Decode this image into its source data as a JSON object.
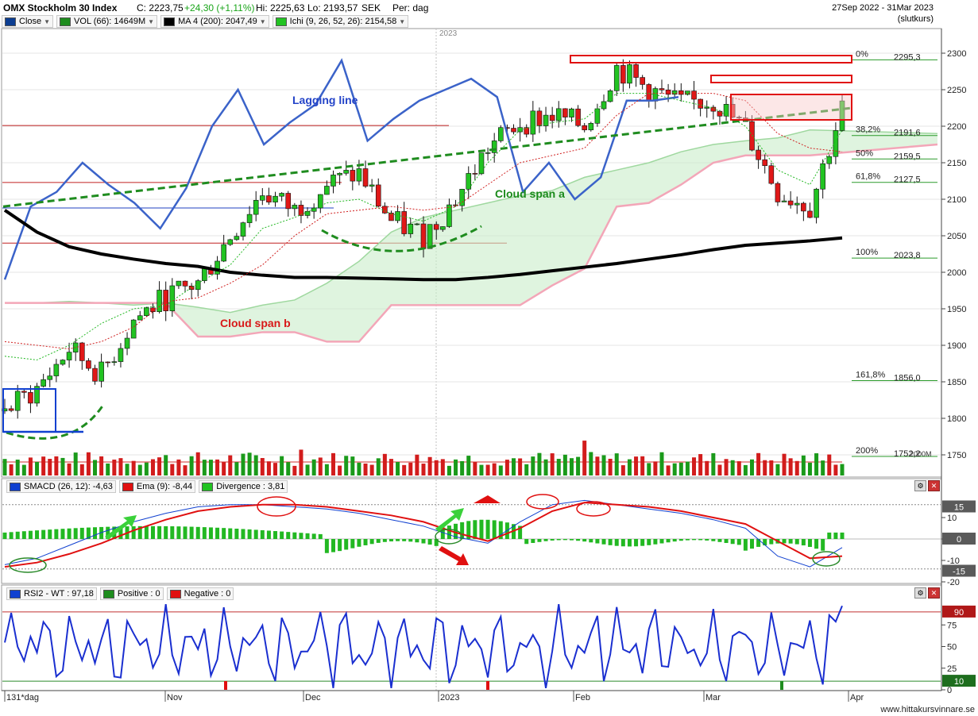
{
  "header": {
    "title": "OMX Stockholm 30 Index",
    "close_label": "C: 2223,75",
    "change_label": "+24,30 (+1,11%)",
    "high_label": "Hi: 2225,63",
    "low_label": "Lo: 2193,57",
    "currency": "SEK",
    "period": "Per: dag",
    "date_range": "27Sep 2022 - 31Mar 2023",
    "price_mode": "(slutkurs)"
  },
  "legend": [
    {
      "label": "Close",
      "color": "#0b3d91"
    },
    {
      "label": "VOL (66): 14649M",
      "color": "#1e8c1e"
    },
    {
      "label": "MA 4 (200): 2047,49",
      "color": "#000000"
    },
    {
      "label": "Ichi (9, 26, 52, 26): 2154,58",
      "color": "#22c322"
    }
  ],
  "annotations": {
    "lagging_line": "Lagging line",
    "cloud_span_a": "Cloud span a",
    "cloud_span_b": "Cloud span b",
    "year_marker": "2023"
  },
  "fib_levels": [
    {
      "pct": "0%",
      "value": 2295.3,
      "value_label": "2295,3"
    },
    {
      "pct": "38,2%",
      "value": 2191.6,
      "value_label": "2191,6"
    },
    {
      "pct": "50%",
      "value": 2159.5,
      "value_label": "2159,5"
    },
    {
      "pct": "61,8%",
      "value": 2127.5,
      "value_label": "2127,5"
    },
    {
      "pct": "100%",
      "value": 2023.8,
      "value_label": "2023,8"
    },
    {
      "pct": "161,8%",
      "value": 1856.0,
      "value_label": "1856,0"
    },
    {
      "pct": "200%",
      "value": 1752.2,
      "value_label": "1752,2"
    }
  ],
  "volume_axis_label": "2000M",
  "price_axis": {
    "ticks": [
      "2300",
      "2250",
      "2200",
      "2150",
      "2100",
      "2050",
      "2000",
      "1950",
      "1900",
      "1850",
      "1800",
      "1750"
    ]
  },
  "macd": {
    "legend": [
      {
        "label": "SMACD (26, 12): -4,63",
        "color": "#1040d0"
      },
      {
        "label": "Ema (9): -8,44",
        "color": "#e01010"
      },
      {
        "label": "Divergence : 3,81",
        "color": "#22c322"
      }
    ],
    "ticks": [
      "10",
      "0",
      "-10",
      "-20"
    ],
    "badges": [
      "15",
      "0",
      "-15"
    ]
  },
  "rsi": {
    "legend": [
      {
        "label": "RSI2 - WT : 97,18",
        "color": "#1040d0"
      },
      {
        "label": "Positive : 0",
        "color": "#1e8c1e"
      },
      {
        "label": "Negative : 0",
        "color": "#e01010"
      }
    ],
    "ticks": [
      "75",
      "50",
      "25",
      "0"
    ],
    "badges": [
      "90",
      "10"
    ]
  },
  "x_axis": {
    "labels": [
      "131*dag",
      "Nov",
      "Dec",
      "2023",
      "Feb",
      "Mar",
      "Apr"
    ]
  },
  "footer": "www.hittakursvinnare.se",
  "chart_data": {
    "type": "line",
    "title": "OMX Stockholm 30 Index",
    "ylim": [
      1740,
      2320
    ],
    "x": [
      "2022-09-27",
      "2022-10-04",
      "2022-10-11",
      "2022-10-18",
      "2022-10-25",
      "2022-11-01",
      "2022-11-08",
      "2022-11-15",
      "2022-11-22",
      "2022-11-29",
      "2022-12-06",
      "2022-12-13",
      "2022-12-20",
      "2022-12-27",
      "2023-01-03",
      "2023-01-10",
      "2023-01-17",
      "2023-01-24",
      "2023-01-31",
      "2023-02-07",
      "2023-02-14",
      "2023-02-21",
      "2023-02-28",
      "2023-03-07",
      "2023-03-14",
      "2023-03-21",
      "2023-03-28"
    ],
    "series": [
      {
        "name": "Close",
        "values": [
          1810,
          1840,
          1895,
          1860,
          1935,
          1965,
          1985,
          2050,
          2110,
          2085,
          2120,
          2135,
          2070,
          2050,
          2100,
          2170,
          2205,
          2215,
          2200,
          2280,
          2250,
          2230,
          2235,
          2195,
          2110,
          2090,
          2224
        ]
      },
      {
        "name": "MA 4 (200)",
        "values": [
          2085,
          2055,
          2035,
          2025,
          2018,
          2012,
          2008,
          2000,
          1996,
          1993,
          1993,
          1992,
          1991,
          1990,
          1990,
          1993,
          1997,
          2002,
          2007,
          2012,
          2018,
          2024,
          2031,
          2037,
          2040,
          2043,
          2047
        ]
      }
    ]
  }
}
